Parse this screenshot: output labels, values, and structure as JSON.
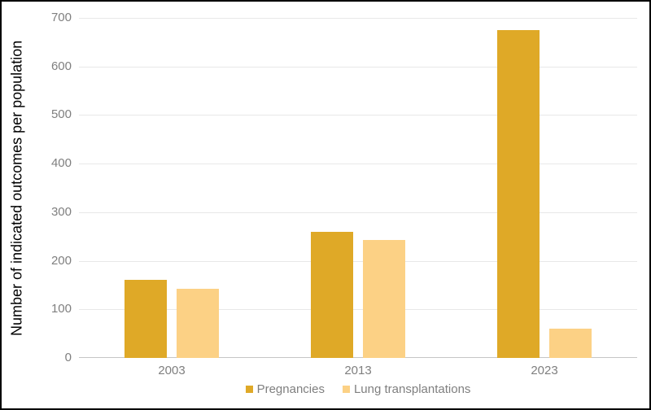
{
  "chart_data": {
    "type": "bar",
    "title": "",
    "categories": [
      "2003",
      "2013",
      "2023"
    ],
    "series": [
      {
        "name": "Pregnancies",
        "color": "#DFA927",
        "values": [
          160,
          260,
          675
        ]
      },
      {
        "name": "Lung transplantations",
        "color": "#FCD185",
        "values": [
          142,
          242,
          60
        ]
      }
    ],
    "xlabel": "",
    "ylabel": "Number of indicated outcomes per population",
    "ylim": [
      0,
      700
    ],
    "yticks": [
      0,
      100,
      200,
      300,
      400,
      500,
      600,
      700
    ],
    "grid": true,
    "legend_position": "bottom-center"
  },
  "style": {
    "background": "#FFFFFF",
    "border_color": "#000000",
    "grid_color": "#E8E8E8",
    "zero_axis_color": "#C6C6C6",
    "tick_label_color": "#7F7F7F",
    "legend_text_color": "#7F7F7F",
    "axis_title_color": "#000000"
  }
}
